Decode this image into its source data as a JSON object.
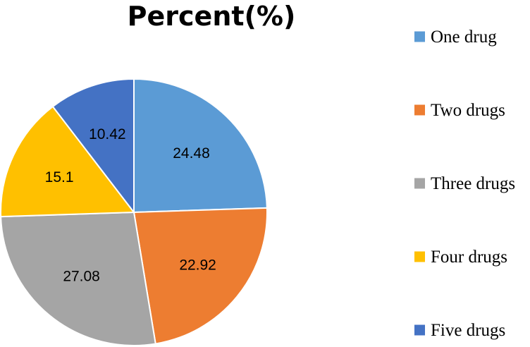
{
  "chart_data": {
    "type": "pie",
    "title": "Percent(%)",
    "categories": [
      "One drug",
      "Two drugs",
      "Three drugs",
      "Four drugs",
      "Five drugs"
    ],
    "values": [
      24.48,
      22.92,
      27.08,
      15.1,
      10.42
    ],
    "value_labels": [
      "24.48",
      "22.92",
      "27.08",
      "15.1",
      "10.42"
    ],
    "colors": [
      "#5B9BD5",
      "#ED7D31",
      "#A5A5A5",
      "#FFC000",
      "#4472C4"
    ],
    "start_angle": "12 o'clock",
    "direction": "clockwise",
    "legend_position": "right"
  }
}
